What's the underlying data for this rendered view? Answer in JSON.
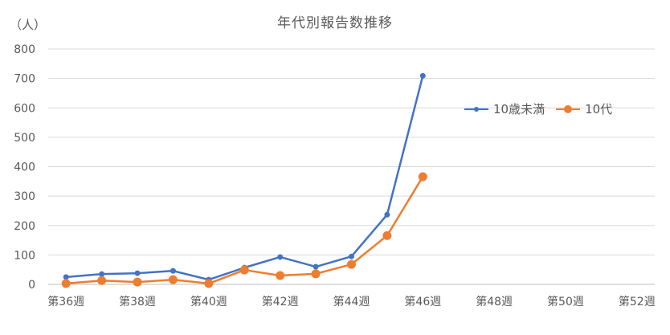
{
  "chart_data": {
    "type": "line",
    "title": "年代別報告数推移",
    "unit_label": "（人）",
    "ylim": [
      0,
      800
    ],
    "yticks": [
      0,
      100,
      200,
      300,
      400,
      500,
      600,
      700,
      800
    ],
    "grid": true,
    "legend_position": "right",
    "categories": [
      "第36週",
      "第37週",
      "第38週",
      "第39週",
      "第40週",
      "第41週",
      "第42週",
      "第43週",
      "第44週",
      "第45週",
      "第46週",
      "第47週",
      "第48週",
      "第49週",
      "第50週",
      "第51週",
      "第52週"
    ],
    "tick_labels": [
      "第36週",
      "",
      "第38週",
      "",
      "第40週",
      "",
      "第42週",
      "",
      "第44週",
      "",
      "第46週",
      "",
      "第48週",
      "",
      "第50週",
      "",
      "第52週"
    ],
    "series": [
      {
        "name": "10歳未満",
        "color": "#4472C4",
        "marker": "small",
        "values": [
          25,
          35,
          38,
          46,
          16,
          57,
          93,
          60,
          95,
          237,
          709,
          null,
          null,
          null,
          null,
          null,
          null
        ]
      },
      {
        "name": "10代",
        "color": "#ED7D31",
        "marker": "large",
        "values": [
          3,
          13,
          8,
          16,
          3,
          49,
          30,
          36,
          68,
          166,
          366,
          null,
          null,
          null,
          null,
          null,
          null
        ]
      }
    ]
  }
}
